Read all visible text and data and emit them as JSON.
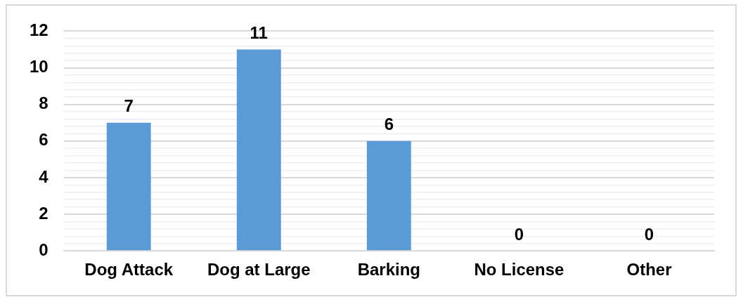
{
  "chart_data": {
    "type": "bar",
    "categories": [
      "Dog Attack",
      "Dog at Large",
      "Barking",
      "No License",
      "Other"
    ],
    "values": [
      7,
      11,
      6,
      0,
      0
    ],
    "color": "#5b9bd5",
    "data_labels": true,
    "grid": "y",
    "legend": false,
    "ylim": [
      0,
      12
    ],
    "yticks": [
      0,
      {
        "value": 0.4,
        "label": null
      },
      {
        "value": 0.8,
        "label": null
      },
      {
        "value": 1.2,
        "label": null
      },
      {
        "value": 1.6,
        "label": null
      },
      2,
      {
        "value": 2.4,
        "label": null
      },
      {
        "value": 2.8,
        "label": null
      },
      {
        "value": 3.2,
        "label": null
      },
      {
        "value": 3.6,
        "label": null
      },
      4,
      {
        "value": 4.4,
        "label": null
      },
      {
        "value": 4.8,
        "label": null
      },
      {
        "value": 5.2,
        "label": null
      },
      {
        "value": 5.6,
        "label": null
      },
      6,
      {
        "value": 6.4,
        "label": null
      },
      {
        "value": 6.8,
        "label": null
      },
      {
        "value": 7.2,
        "label": null
      },
      {
        "value": 7.6,
        "label": null
      },
      8,
      {
        "value": 8.4,
        "label": null
      },
      {
        "value": 8.8,
        "label": null
      },
      {
        "value": 9.2,
        "label": null
      },
      {
        "value": 9.6,
        "label": null
      },
      10,
      {
        "value": 10.4,
        "label": null
      },
      {
        "value": 10.8,
        "label": null
      },
      {
        "value": 11.2,
        "label": null
      },
      {
        "value": 11.6,
        "label": null
      },
      12
    ]
  }
}
